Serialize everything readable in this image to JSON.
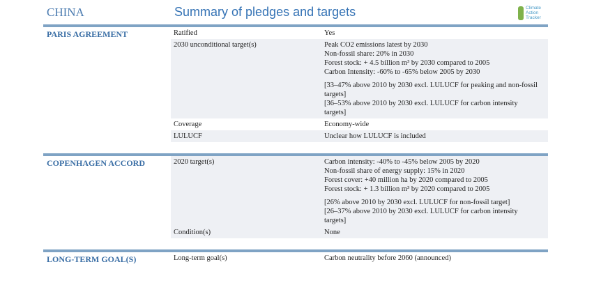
{
  "header": {
    "country": "CHINA",
    "title": "Summary of pledges and targets",
    "logo": [
      "Climate",
      "Action",
      "Tracker"
    ]
  },
  "sections": [
    {
      "title": "PARIS AGREEMENT",
      "rows": [
        {
          "label": "Ratified",
          "paragraphs": [
            [
              "Yes"
            ]
          ]
        },
        {
          "label": "2030 unconditional target(s)",
          "paragraphs": [
            [
              "Peak CO2 emissions latest by 2030",
              "Non-fossil share: 20% in 2030",
              "Forest stock: + 4.5 billion m³ by 2030 compared to 2005",
              "Carbon Intensity: -60% to -65% below 2005 by 2030"
            ],
            [
              "[33–47% above 2010 by 2030 excl. LULUCF for peaking and non-fossil",
              "targets]",
              "[36–53% above 2010 by 2030 excl. LULUCF for carbon intensity",
              "targets]"
            ]
          ]
        },
        {
          "label": "Coverage",
          "paragraphs": [
            [
              "Economy-wide"
            ]
          ]
        },
        {
          "label": "LULUCF",
          "paragraphs": [
            [
              "Unclear how LULUCF is included"
            ]
          ]
        }
      ]
    },
    {
      "title": "COPENHAGEN ACCORD",
      "rows": [
        {
          "label": "2020 target(s)",
          "paragraphs": [
            [
              "Carbon intensity: -40% to -45% below 2005 by 2020",
              "Non-fossil share of energy supply: 15% in 2020",
              "Forest cover: +40 million ha by 2020 compared to 2005",
              "Forest stock: + 1.3 billion m³ by 2020 compared to 2005"
            ],
            [
              "[26% above 2010 by 2030 excl. LULUCF for non-fossil target]",
              "[26–37% above 2010 by 2030 excl. LULUCF for carbon intensity",
              "targets]"
            ]
          ]
        },
        {
          "label": "Condition(s)",
          "paragraphs": [
            [
              "None"
            ]
          ]
        }
      ]
    },
    {
      "title": "LONG-TERM GOAL(S)",
      "rows": [
        {
          "label": "Long-term goal(s)",
          "paragraphs": [
            [
              "Carbon neutrality before 2060 (announced)"
            ]
          ]
        }
      ]
    }
  ]
}
